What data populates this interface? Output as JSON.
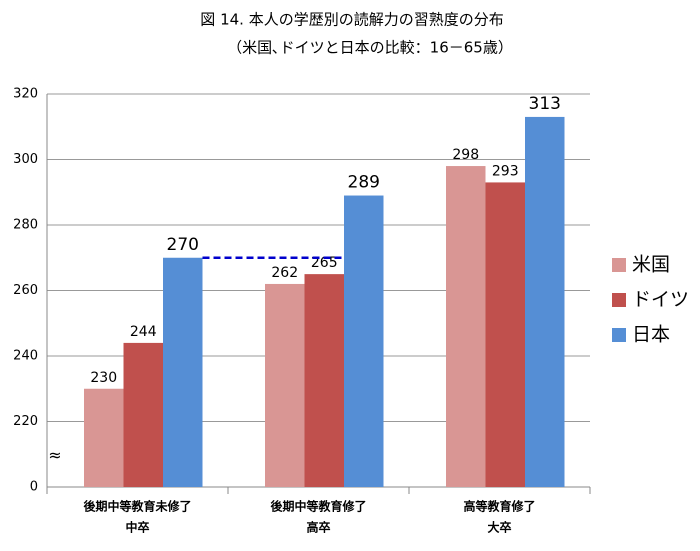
{
  "chart_data": {
    "type": "bar",
    "title": "図 14.  本人の学歴別の読解力の習熟度の分布",
    "subtitle": "（米国､ドイツと日本の比較：16－65歳）",
    "categories": [
      "後期中等教育未修了",
      "後期中等教育修了",
      "高等教育修了"
    ],
    "subcategories": [
      "中卒",
      "高卒",
      "大卒"
    ],
    "series": [
      {
        "name": "米国",
        "color": "#d99694",
        "values": [
          230,
          262,
          298
        ]
      },
      {
        "name": "ドイツ",
        "color": "#c0504d",
        "values": [
          244,
          265,
          293
        ]
      },
      {
        "name": "日本",
        "color": "#558ed5",
        "values": [
          270,
          289,
          313
        ]
      }
    ],
    "ylim": [
      200,
      320
    ],
    "yticks": [
      220,
      240,
      260,
      280,
      300,
      320
    ],
    "y_origin_label": "0",
    "axis_break": "≈",
    "reference_line": {
      "value": 270,
      "color": "#0000cc"
    },
    "grid": true,
    "legend": "right"
  }
}
